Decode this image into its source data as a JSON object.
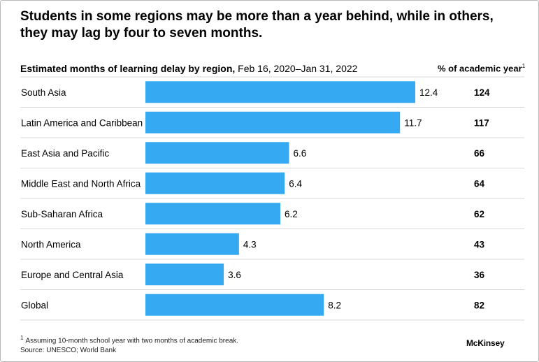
{
  "title": "Students in some regions may be more than a year behind, while in others, they may lag by four to seven months.",
  "subtitle_bold": "Estimated months of learning delay by region,",
  "subtitle_rest": " Feb 16, 2020–Jan 31, 2022",
  "column_header": "% of academic year",
  "column_header_note": "1",
  "footnote_mark": "1",
  "footnote_text": "Assuming 10-month school year with two months of academic break.",
  "source": "Source: UNESCO; World Bank",
  "logo_text": "McKinsey",
  "colors": {
    "bar": "#36a9f3",
    "divider": "#d9d9d9"
  },
  "chart_data": {
    "type": "bar",
    "orientation": "horizontal",
    "categories": [
      "South Asia",
      "Latin America and Caribbean",
      "East Asia and Pacific",
      "Middle East and North Africa",
      "Sub-Saharan Africa",
      "North America",
      "Europe and Central Asia",
      "Global"
    ],
    "values": [
      12.4,
      11.7,
      6.6,
      6.4,
      6.2,
      4.3,
      3.6,
      8.2
    ],
    "value_labels": [
      "12.4",
      "11.7",
      "6.6",
      "6.4",
      "6.2",
      "4.3",
      "3.6",
      "8.2"
    ],
    "percent_of_year": [
      "124",
      "117",
      "66",
      "64",
      "62",
      "43",
      "36",
      "82"
    ],
    "title": "Estimated months of learning delay by region",
    "xlim": [
      0,
      12.4
    ],
    "grid": false
  }
}
